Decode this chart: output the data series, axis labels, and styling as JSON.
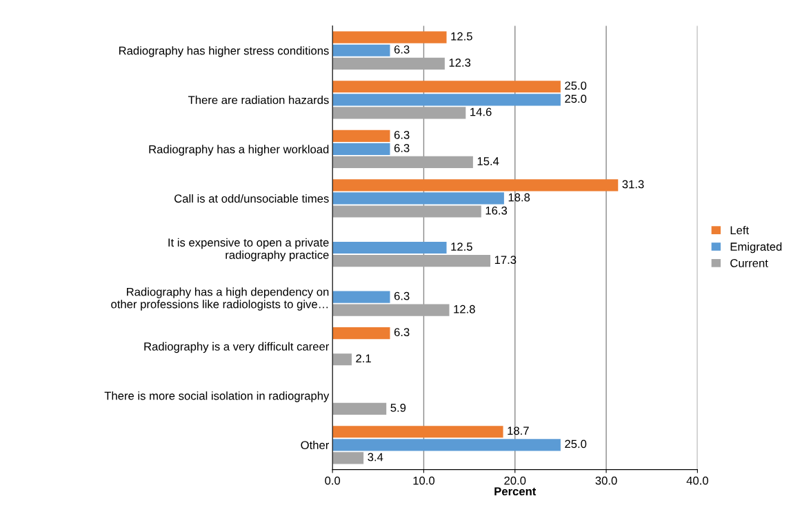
{
  "chart_data": {
    "type": "bar",
    "orientation": "horizontal",
    "categories": [
      "Radiography has higher stress conditions",
      "There are radiation hazards",
      "Radiography has a higher workload",
      "Call is at odd/unsociable times",
      "It is expensive to open a private\nradiography practice",
      "Radiography has a high dependency on\nother professions like radiologists to give…",
      "Radiography is a very difficult career",
      "There is more social isolation in radiography",
      "Other"
    ],
    "series": [
      {
        "name": "Left",
        "color": "#ed7d31",
        "values": [
          12.5,
          25.0,
          6.3,
          31.3,
          null,
          null,
          6.3,
          null,
          18.7
        ],
        "value_labels": [
          "12.5",
          "25.0",
          "6.3",
          "31.3",
          null,
          null,
          "6.3",
          null,
          "18.7"
        ]
      },
      {
        "name": "Emigrated",
        "color": "#5b9bd5",
        "values": [
          6.3,
          25.0,
          6.3,
          18.8,
          12.5,
          6.3,
          null,
          null,
          25.0
        ],
        "value_labels": [
          "6.3",
          "25.0",
          "6.3",
          "18.8",
          "12.5",
          "6.3",
          null,
          null,
          "25.0"
        ]
      },
      {
        "name": "Current",
        "color": "#a5a5a5",
        "values": [
          12.3,
          14.6,
          15.4,
          16.3,
          17.3,
          12.8,
          2.1,
          5.9,
          3.4
        ],
        "value_labels": [
          "12.3",
          "14.6",
          "15.4",
          "16.3",
          "17.3",
          "12.8",
          "2.1",
          "5.9",
          "3.4"
        ]
      }
    ],
    "xlabel": "Percent",
    "xlim": [
      0,
      40
    ],
    "xticks": [
      {
        "value": 0,
        "label": "0.0"
      },
      {
        "value": 10,
        "label": "10.0"
      },
      {
        "value": 20,
        "label": "20.0"
      },
      {
        "value": 30,
        "label": "30.0"
      },
      {
        "value": 40,
        "label": "40.0"
      }
    ],
    "grid": "x",
    "legend": "right"
  }
}
